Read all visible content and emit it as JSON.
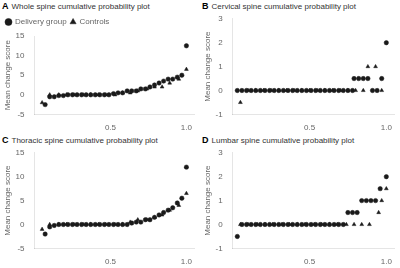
{
  "chart_data": [
    {
      "type": "scatter",
      "title": "Whole spine cumulative probability plot",
      "annotations": [
        "A"
      ],
      "ylabel": "Mean change score",
      "xlim": [
        0.0,
        1.05
      ],
      "xticks": [
        0.5,
        {
          "value": 1.0,
          "label": "1.0"
        }
      ],
      "ylim": [
        -5,
        15
      ],
      "yticks": [
        -5,
        0,
        5,
        10,
        15
      ],
      "grid": false,
      "legend": "upper left",
      "series": [
        {
          "name": "Delivery group",
          "color": "#1a1a1a",
          "marker": "circle",
          "x": [
            0.07,
            0.1,
            0.13,
            0.16,
            0.19,
            0.22,
            0.25,
            0.28,
            0.31,
            0.34,
            0.37,
            0.4,
            0.43,
            0.46,
            0.49,
            0.52,
            0.55,
            0.58,
            0.61,
            0.64,
            0.67,
            0.7,
            0.73,
            0.76,
            0.79,
            0.82,
            0.85,
            0.88,
            0.91,
            0.94,
            0.97,
            1.0
          ],
          "values": [
            -2.5,
            -0.5,
            -0.5,
            -0.2,
            -0.2,
            0.0,
            0.0,
            0.0,
            0.0,
            0.0,
            0.0,
            0.0,
            0.0,
            0.0,
            0.0,
            0.3,
            0.5,
            0.5,
            1.0,
            1.0,
            1.0,
            1.5,
            1.5,
            2.0,
            2.5,
            3.0,
            3.5,
            4.0,
            4.0,
            4.5,
            5.0,
            12.5
          ]
        },
        {
          "name": "Controls",
          "color": "#1a1a1a",
          "marker": "triangle",
          "x": [
            0.05,
            0.1,
            0.16,
            0.21,
            0.26,
            0.32,
            0.37,
            0.42,
            0.47,
            0.53,
            0.58,
            0.63,
            0.68,
            0.74,
            0.79,
            0.84,
            0.89,
            0.95,
            1.0
          ],
          "values": [
            -2.0,
            0.0,
            0.0,
            0.0,
            0.0,
            0.0,
            0.0,
            0.0,
            0.0,
            0.0,
            0.5,
            0.5,
            1.0,
            1.5,
            2.0,
            2.0,
            3.0,
            4.0,
            6.5
          ]
        }
      ]
    },
    {
      "type": "scatter",
      "title": "Cervical spine cumulative probability plot",
      "annotations": [
        "B"
      ],
      "ylabel": "Mean change score",
      "xlim": [
        0.0,
        1.05
      ],
      "xticks": [
        0.5,
        {
          "value": 1.0,
          "label": "1.0"
        }
      ],
      "ylim": [
        -1,
        3
      ],
      "yticks": [
        -1,
        0,
        1,
        2,
        3
      ],
      "grid": false,
      "series": [
        {
          "name": "Delivery group",
          "color": "#1a1a1a",
          "marker": "circle",
          "x": [
            0.03,
            0.06,
            0.09,
            0.12,
            0.15,
            0.18,
            0.21,
            0.24,
            0.27,
            0.3,
            0.33,
            0.36,
            0.39,
            0.42,
            0.45,
            0.48,
            0.51,
            0.54,
            0.57,
            0.6,
            0.63,
            0.66,
            0.69,
            0.72,
            0.75,
            0.78,
            0.79,
            0.82,
            0.85,
            0.88,
            0.91,
            0.94,
            0.97,
            1.0
          ],
          "values": [
            0.0,
            0.0,
            0.0,
            0.0,
            0.0,
            0.0,
            0.0,
            0.0,
            0.0,
            0.0,
            0.0,
            0.0,
            0.0,
            0.0,
            0.0,
            0.0,
            0.0,
            0.0,
            0.0,
            0.0,
            0.0,
            0.0,
            0.0,
            0.0,
            0.0,
            0.0,
            0.5,
            0.5,
            0.5,
            0.5,
            0.0,
            0.0,
            0.5,
            2.0
          ]
        },
        {
          "name": "Controls",
          "color": "#1a1a1a",
          "marker": "triangle",
          "x": [
            0.05,
            0.1,
            0.15,
            0.2,
            0.25,
            0.3,
            0.35,
            0.4,
            0.45,
            0.5,
            0.55,
            0.6,
            0.65,
            0.7,
            0.75,
            0.8,
            0.85,
            0.88,
            0.93,
            0.97
          ],
          "values": [
            -0.5,
            0.0,
            0.0,
            0.0,
            0.0,
            0.0,
            0.0,
            0.0,
            0.0,
            0.0,
            0.0,
            0.0,
            0.0,
            0.0,
            0.0,
            0.0,
            0.0,
            1.0,
            1.0,
            0.0
          ]
        }
      ]
    },
    {
      "type": "scatter",
      "title": "Thoracic spine cumulative probability plot",
      "annotations": [
        "C"
      ],
      "ylabel": "Mean change score",
      "xlim": [
        0.0,
        1.05
      ],
      "xticks": [
        0.5,
        {
          "value": 1.0,
          "label": "1.0"
        }
      ],
      "ylim": [
        -5,
        15
      ],
      "yticks": [
        -5,
        0,
        5,
        10,
        15
      ],
      "grid": false,
      "series": [
        {
          "name": "Delivery group",
          "color": "#1a1a1a",
          "marker": "circle",
          "x": [
            0.07,
            0.1,
            0.13,
            0.16,
            0.19,
            0.22,
            0.25,
            0.28,
            0.31,
            0.34,
            0.37,
            0.4,
            0.43,
            0.46,
            0.49,
            0.52,
            0.55,
            0.58,
            0.61,
            0.64,
            0.67,
            0.7,
            0.73,
            0.76,
            0.79,
            0.82,
            0.85,
            0.88,
            0.91,
            0.94,
            0.97,
            1.0
          ],
          "values": [
            -2.0,
            -0.5,
            -0.2,
            0.0,
            0.0,
            0.0,
            0.0,
            0.0,
            0.0,
            0.0,
            0.0,
            0.0,
            0.0,
            0.0,
            0.0,
            0.0,
            0.0,
            0.0,
            0.0,
            0.3,
            0.5,
            0.5,
            1.0,
            1.0,
            1.5,
            2.0,
            2.5,
            3.0,
            3.5,
            4.5,
            5.5,
            12.0
          ]
        },
        {
          "name": "Controls",
          "color": "#1a1a1a",
          "marker": "triangle",
          "x": [
            0.05,
            0.1,
            0.16,
            0.21,
            0.26,
            0.32,
            0.37,
            0.42,
            0.47,
            0.53,
            0.58,
            0.63,
            0.68,
            0.74,
            0.79,
            0.84,
            0.89,
            0.95,
            1.0
          ],
          "values": [
            -1.0,
            0.0,
            0.0,
            0.0,
            0.0,
            0.0,
            0.0,
            0.0,
            0.0,
            0.0,
            0.0,
            0.5,
            1.0,
            1.0,
            1.5,
            2.0,
            3.0,
            4.0,
            6.5
          ]
        }
      ]
    },
    {
      "type": "scatter",
      "title": "Lumbar spine cumulative probability plot",
      "annotations": [
        "D"
      ],
      "ylabel": "Mean change score",
      "xlim": [
        0.0,
        1.05
      ],
      "xticks": [
        0.5,
        {
          "value": 1.0,
          "label": "1.0"
        }
      ],
      "ylim": [
        -1,
        3
      ],
      "yticks": [
        -1,
        0,
        1,
        2,
        3
      ],
      "grid": false,
      "series": [
        {
          "name": "Delivery group",
          "color": "#1a1a1a",
          "marker": "circle",
          "x": [
            0.03,
            0.06,
            0.09,
            0.12,
            0.15,
            0.18,
            0.21,
            0.24,
            0.27,
            0.3,
            0.33,
            0.36,
            0.39,
            0.42,
            0.45,
            0.48,
            0.51,
            0.54,
            0.57,
            0.6,
            0.63,
            0.66,
            0.69,
            0.72,
            0.75,
            0.78,
            0.81,
            0.84,
            0.87,
            0.9,
            0.93,
            0.96,
            1.0
          ],
          "values": [
            -0.5,
            0.0,
            0.0,
            0.0,
            0.0,
            0.0,
            0.0,
            0.0,
            0.0,
            0.0,
            0.0,
            0.0,
            0.0,
            0.0,
            0.0,
            0.0,
            0.0,
            0.0,
            0.0,
            0.0,
            0.0,
            0.0,
            0.0,
            0.0,
            0.5,
            0.5,
            0.5,
            1.0,
            1.0,
            1.0,
            1.0,
            1.5,
            2.0
          ]
        },
        {
          "name": "Controls",
          "color": "#1a1a1a",
          "marker": "triangle",
          "x": [
            0.05,
            0.1,
            0.16,
            0.21,
            0.26,
            0.32,
            0.37,
            0.42,
            0.47,
            0.53,
            0.58,
            0.63,
            0.68,
            0.74,
            0.79,
            0.84,
            0.89,
            0.95,
            0.97,
            1.0
          ],
          "values": [
            0.0,
            0.0,
            0.0,
            0.0,
            0.0,
            0.0,
            0.0,
            0.0,
            0.0,
            0.0,
            0.0,
            0.0,
            0.0,
            0.0,
            0.0,
            0.0,
            0.0,
            0.5,
            1.0,
            1.5
          ]
        }
      ]
    }
  ]
}
